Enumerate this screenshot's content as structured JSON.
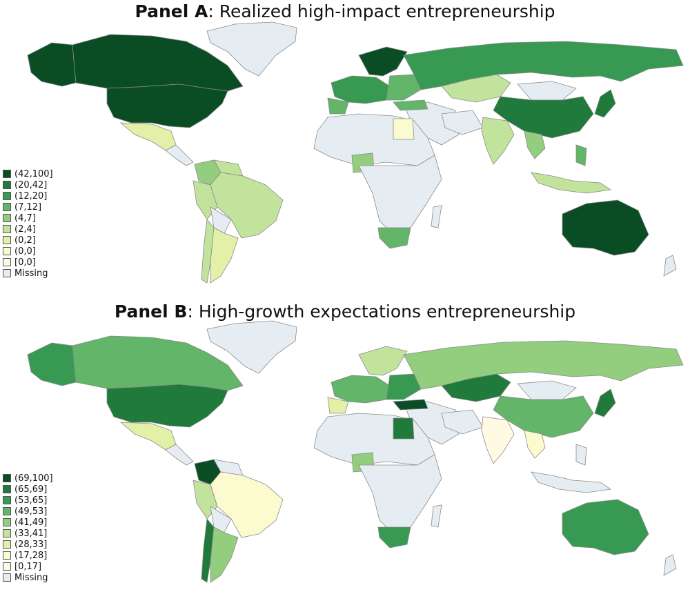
{
  "colors": {
    "missing": "#e6edf2",
    "c0": "#fffbe3",
    "c1": "#fcfbd0",
    "c2": "#e2f0a8",
    "c3": "#c2e39b",
    "c4": "#93cd7e",
    "c5": "#62b569",
    "c6": "#389a52",
    "c7": "#1f7a3c",
    "c8": "#0a4d24"
  },
  "panels": [
    {
      "title_bold": "Panel A",
      "title_rest": ": Realized high-impact entrepreneurship",
      "legend": [
        {
          "label": "(42,100]",
          "color": "#0a4d24"
        },
        {
          "label": "(20,42]",
          "color": "#1f7a3c"
        },
        {
          "label": "(12,20]",
          "color": "#389a52"
        },
        {
          "label": "(7,12]",
          "color": "#62b569"
        },
        {
          "label": "(4,7]",
          "color": "#93cd7e"
        },
        {
          "label": "(2,4]",
          "color": "#c2e39b"
        },
        {
          "label": "(0,2]",
          "color": "#e2f0a8"
        },
        {
          "label": "(0,0]",
          "color": "#fcfbd0"
        },
        {
          "label": "[0,0]",
          "color": "#fffbe3"
        },
        {
          "label": "Missing",
          "color": "#e6edf2"
        }
      ]
    },
    {
      "title_bold": "Panel B",
      "title_rest": ": High-growth expectations entrepreneurship",
      "legend": [
        {
          "label": "(69,100]",
          "color": "#0a4d24"
        },
        {
          "label": "(65,69]",
          "color": "#1f7a3c"
        },
        {
          "label": "(53,65]",
          "color": "#389a52"
        },
        {
          "label": "(49,53]",
          "color": "#62b569"
        },
        {
          "label": "(41,49]",
          "color": "#93cd7e"
        },
        {
          "label": "(33,41]",
          "color": "#c2e39b"
        },
        {
          "label": "(28,33]",
          "color": "#e2f0a8"
        },
        {
          "label": "(17,28]",
          "color": "#fcfbd0"
        },
        {
          "label": "[0,17]",
          "color": "#fffbe3"
        },
        {
          "label": "Missing",
          "color": "#e6edf2"
        }
      ]
    }
  ]
}
